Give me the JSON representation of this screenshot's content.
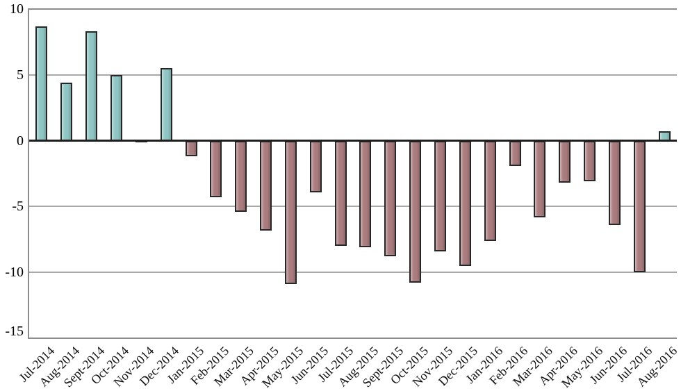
{
  "chart_data": {
    "type": "bar",
    "title": "",
    "xlabel": "",
    "ylabel": "",
    "categories": [
      "Jul-2014",
      "Aug-2014",
      "Sept-2014",
      "Oct-2014",
      "Nov-2014",
      "Dec-2014",
      "Jan-2015",
      "Feb-2015",
      "Mar-2015",
      "Apr-2015",
      "May-2015",
      "Jun-2015",
      "Jul-2015",
      "Aug-2015",
      "Sept-2015",
      "Oct-2015",
      "Nov-2015",
      "Dec-2015",
      "Jan-2016",
      "Feb-2016",
      "Mar-2016",
      "Apr-2016",
      "May-2016",
      "Jun-2016",
      "Jul-2016",
      "Aug-2016"
    ],
    "values": [
      8.7,
      4.4,
      8.3,
      5.0,
      0.1,
      5.5,
      -1.2,
      -4.3,
      -5.4,
      -6.8,
      -10.9,
      -3.9,
      -8.0,
      -8.1,
      -8.8,
      -10.8,
      -8.4,
      -9.5,
      -7.6,
      -1.9,
      -5.8,
      -3.2,
      -3.1,
      -6.4,
      -10.0,
      0.7
    ],
    "ylim": [
      -15,
      10
    ],
    "yticks": [
      10,
      5,
      0,
      -5,
      -10,
      -15
    ],
    "grid": true,
    "legend_position": "none",
    "x_tick_rotation_deg": 45,
    "positive_color": "#8FC6C4",
    "negative_color": "#A97B7E",
    "bar_border_color": "#262626",
    "gridline_color": "#A9A9A9",
    "zero_line_color": "#1F1F1F",
    "frame_color": "#8C8C8C",
    "text_color": "#000000"
  }
}
